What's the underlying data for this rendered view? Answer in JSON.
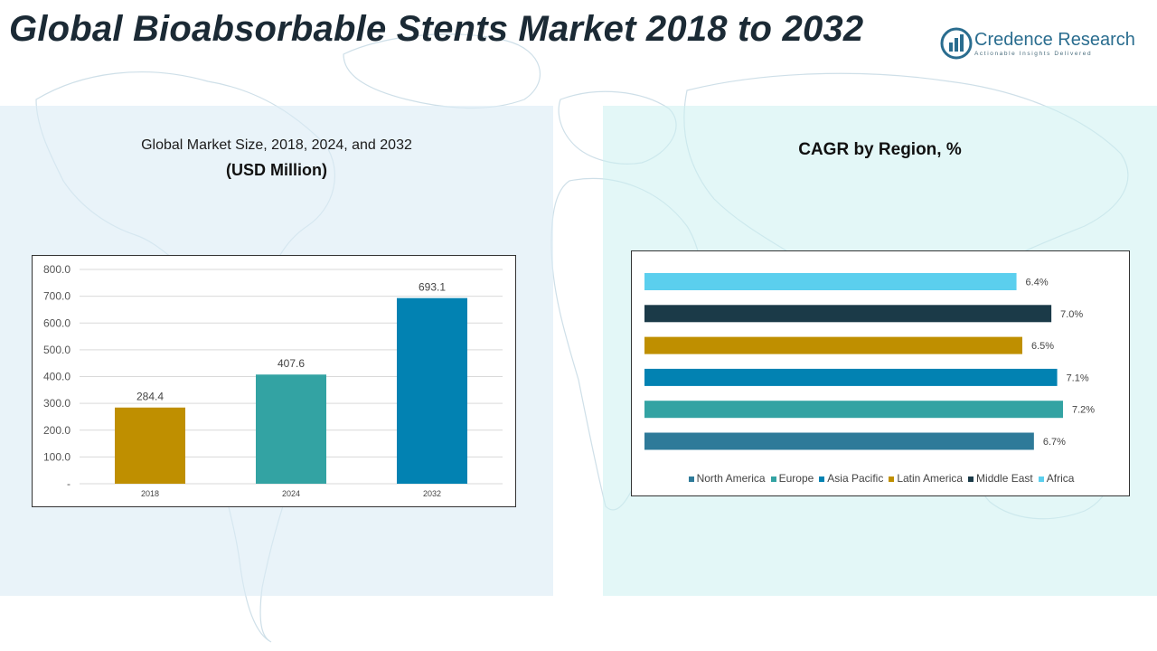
{
  "header": {
    "title_main": "Global Bioabsorbable Stents Market 2018 to 2032"
  },
  "brand": {
    "name": "Credence Research",
    "tagline": "Actionable Insights Delivered",
    "color": "#2a6d8f"
  },
  "left_panel": {
    "title": "Global Market Size, 2018, 2024, and 2032",
    "subtitle": "(USD Million)"
  },
  "right_panel": {
    "title": "CAGR by Region, %"
  },
  "chart_data": [
    {
      "type": "bar",
      "title": "Global Market Size, 2018, 2024, and 2032",
      "ylabel": "(USD Million)",
      "categories": [
        "2018",
        "2024",
        "2032"
      ],
      "values": [
        284.4,
        407.6,
        693.1
      ],
      "value_labels": [
        "284.4",
        "407.6",
        "693.1"
      ],
      "colors": [
        "#bf8f00",
        "#33a3a3",
        "#0282b2"
      ],
      "ylim": [
        0,
        800
      ],
      "yticks": [
        0,
        100,
        200,
        300,
        400,
        500,
        600,
        700,
        800
      ],
      "ytick_labels": [
        "-",
        "100.0",
        "200.0",
        "300.0",
        "400.0",
        "500.0",
        "600.0",
        "700.0",
        "800.0"
      ],
      "grid": true
    },
    {
      "type": "bar",
      "orientation": "horizontal",
      "title": "CAGR by Region, %",
      "categories": [
        "North America",
        "Europe",
        "Asia Pacific",
        "Latin America",
        "Middle East",
        "Africa"
      ],
      "values": [
        6.7,
        7.2,
        7.1,
        6.5,
        7.0,
        6.4
      ],
      "value_labels": [
        "6.7%",
        "7.2%",
        "7.1%",
        "6.5%",
        "7.0%",
        "6.4%"
      ],
      "colors": [
        "#2e7a99",
        "#33a3a3",
        "#0282b2",
        "#bf8f00",
        "#1b3a48",
        "#5bcfee"
      ],
      "legend": "bottom",
      "grid": false
    }
  ]
}
